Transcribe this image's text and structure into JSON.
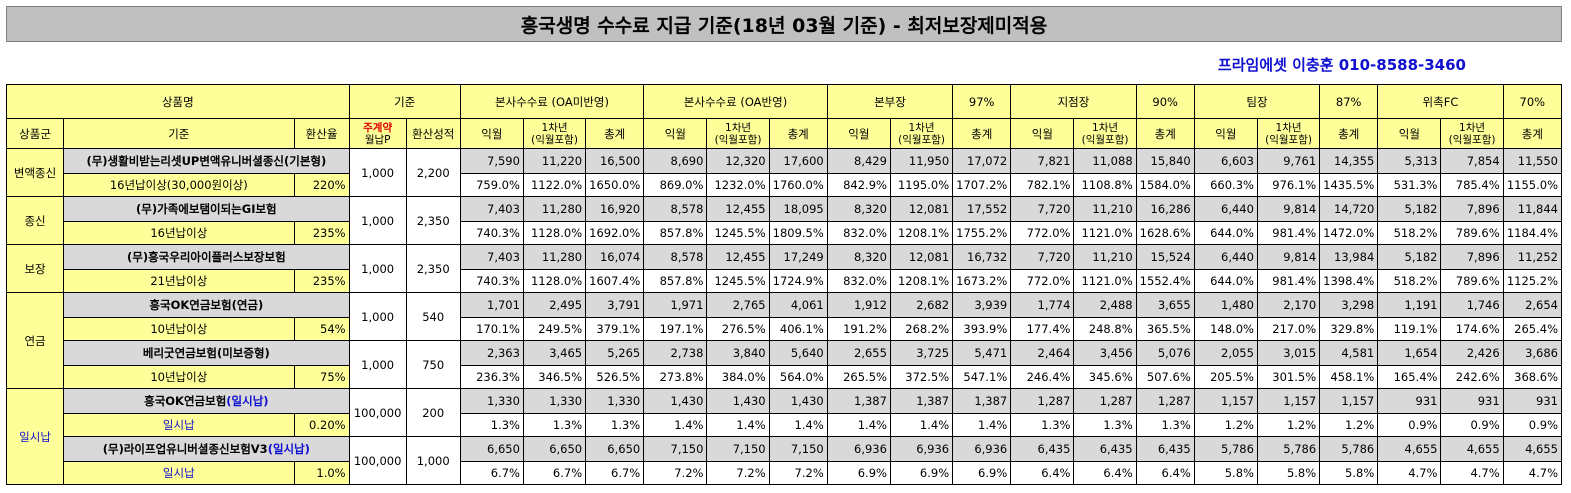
{
  "title": "흥국생명 수수료 지급 기준(18년 03월 기준) - 최저보장제미적용",
  "contact": "프라임에셋 이충훈 010-8588-3460",
  "header": {
    "product_name": "상품명",
    "basis": "기준",
    "hq_no_oa": "본사수수료 (OA미반영)",
    "hq_oa": "본사수수료 (OA반영)",
    "bonbujang": "본부장",
    "bonbujang_pct": "97%",
    "jijeomjang": "지점장",
    "jijeomjang_pct": "90%",
    "timjang": "팀장",
    "timjang_pct": "87%",
    "wichok": "위촉FC",
    "wichok_pct": "70%",
    "product_group": "상품군",
    "basis2": "기준",
    "conversion_rate": "환산율",
    "main_contract_line1": "주계약",
    "main_contract_line2": "월납P",
    "conversion_perf": "환산성적",
    "ikwol": "익월",
    "first_year_line1": "1차년",
    "first_year_line2": "(익월포함)",
    "total": "총계"
  },
  "groups": {
    "g1": "변액종신",
    "g2": "종신",
    "g3": "보장",
    "g4": "연금",
    "g5": "일시납"
  },
  "products": [
    {
      "name": "(무)생활비받는리셋UP변액유니버셜종신(기본형)",
      "name_suffix": "",
      "basis": "16년납이상(30,000원이상)",
      "rate": "220%",
      "premium": "1,000",
      "perf": "2,200",
      "amounts": [
        "7,590",
        "11,220",
        "16,500",
        "8,690",
        "12,320",
        "17,600",
        "8,429",
        "11,950",
        "17,072",
        "7,821",
        "11,088",
        "15,840",
        "6,603",
        "9,761",
        "14,355",
        "5,313",
        "7,854",
        "11,550"
      ],
      "percents": [
        "759.0%",
        "1122.0%",
        "1650.0%",
        "869.0%",
        "1232.0%",
        "1760.0%",
        "842.9%",
        "1195.0%",
        "1707.2%",
        "782.1%",
        "1108.8%",
        "1584.0%",
        "660.3%",
        "976.1%",
        "1435.5%",
        "531.3%",
        "785.4%",
        "1155.0%"
      ]
    },
    {
      "name": "(무)가족에보탬이되는GI보험",
      "name_suffix": "",
      "basis": "16년납이상",
      "rate": "235%",
      "premium": "1,000",
      "perf": "2,350",
      "amounts": [
        "7,403",
        "11,280",
        "16,920",
        "8,578",
        "12,455",
        "18,095",
        "8,320",
        "12,081",
        "17,552",
        "7,720",
        "11,210",
        "16,286",
        "6,440",
        "9,814",
        "14,720",
        "5,182",
        "7,896",
        "11,844"
      ],
      "percents": [
        "740.3%",
        "1128.0%",
        "1692.0%",
        "857.8%",
        "1245.5%",
        "1809.5%",
        "832.0%",
        "1208.1%",
        "1755.2%",
        "772.0%",
        "1121.0%",
        "1628.6%",
        "644.0%",
        "981.4%",
        "1472.0%",
        "518.2%",
        "789.6%",
        "1184.4%"
      ]
    },
    {
      "name": "(무)흥국우리아이플러스보장보험",
      "name_suffix": "",
      "basis": "21년납이상",
      "rate": "235%",
      "premium": "1,000",
      "perf": "2,350",
      "amounts": [
        "7,403",
        "11,280",
        "16,074",
        "8,578",
        "12,455",
        "17,249",
        "8,320",
        "12,081",
        "16,732",
        "7,720",
        "11,210",
        "15,524",
        "6,440",
        "9,814",
        "13,984",
        "5,182",
        "7,896",
        "11,252"
      ],
      "percents": [
        "740.3%",
        "1128.0%",
        "1607.4%",
        "857.8%",
        "1245.5%",
        "1724.9%",
        "832.0%",
        "1208.1%",
        "1673.2%",
        "772.0%",
        "1121.0%",
        "1552.4%",
        "644.0%",
        "981.4%",
        "1398.4%",
        "518.2%",
        "789.6%",
        "1125.2%"
      ]
    },
    {
      "name": "흥국OK연금보험(연금)",
      "name_suffix": "",
      "basis": "10년납이상",
      "rate": "54%",
      "premium": "1,000",
      "perf": "540",
      "amounts": [
        "1,701",
        "2,495",
        "3,791",
        "1,971",
        "2,765",
        "4,061",
        "1,912",
        "2,682",
        "3,939",
        "1,774",
        "2,488",
        "3,655",
        "1,480",
        "2,170",
        "3,298",
        "1,191",
        "1,746",
        "2,654"
      ],
      "percents": [
        "170.1%",
        "249.5%",
        "379.1%",
        "197.1%",
        "276.5%",
        "406.1%",
        "191.2%",
        "268.2%",
        "393.9%",
        "177.4%",
        "248.8%",
        "365.5%",
        "148.0%",
        "217.0%",
        "329.8%",
        "119.1%",
        "174.6%",
        "265.4%"
      ]
    },
    {
      "name": "베리굿연금보험(미보증형)",
      "name_suffix": "",
      "basis": "10년납이상",
      "rate": "75%",
      "premium": "1,000",
      "perf": "750",
      "amounts": [
        "2,363",
        "3,465",
        "5,265",
        "2,738",
        "3,840",
        "5,640",
        "2,655",
        "3,725",
        "5,471",
        "2,464",
        "3,456",
        "5,076",
        "2,055",
        "3,015",
        "4,581",
        "1,654",
        "2,426",
        "3,686"
      ],
      "percents": [
        "236.3%",
        "346.5%",
        "526.5%",
        "273.8%",
        "384.0%",
        "564.0%",
        "265.5%",
        "372.5%",
        "547.1%",
        "246.4%",
        "345.6%",
        "507.6%",
        "205.5%",
        "301.5%",
        "458.1%",
        "165.4%",
        "242.6%",
        "368.6%"
      ]
    },
    {
      "name": "흥국OK연금보험",
      "name_suffix": "(일시납)",
      "basis": "일시납",
      "rate": "0.20%",
      "premium": "100,000",
      "perf": "200",
      "amounts": [
        "1,330",
        "1,330",
        "1,330",
        "1,430",
        "1,430",
        "1,430",
        "1,387",
        "1,387",
        "1,387",
        "1,287",
        "1,287",
        "1,287",
        "1,157",
        "1,157",
        "1,157",
        "931",
        "931",
        "931"
      ],
      "percents": [
        "1.3%",
        "1.3%",
        "1.3%",
        "1.4%",
        "1.4%",
        "1.4%",
        "1.4%",
        "1.4%",
        "1.4%",
        "1.3%",
        "1.3%",
        "1.3%",
        "1.2%",
        "1.2%",
        "1.2%",
        "0.9%",
        "0.9%",
        "0.9%"
      ]
    },
    {
      "name": "(무)라이프업유니버셜종신보험V3",
      "name_suffix": "(일시납)",
      "basis": "일시납",
      "rate": "1.0%",
      "premium": "100,000",
      "perf": "1,000",
      "amounts": [
        "6,650",
        "6,650",
        "6,650",
        "7,150",
        "7,150",
        "7,150",
        "6,936",
        "6,936",
        "6,936",
        "6,435",
        "6,435",
        "6,435",
        "5,786",
        "5,786",
        "5,786",
        "4,655",
        "4,655",
        "4,655"
      ],
      "percents": [
        "6.7%",
        "6.7%",
        "6.7%",
        "7.2%",
        "7.2%",
        "7.2%",
        "6.9%",
        "6.9%",
        "6.9%",
        "6.4%",
        "6.4%",
        "6.4%",
        "5.8%",
        "5.8%",
        "5.8%",
        "4.7%",
        "4.7%",
        "4.7%"
      ]
    }
  ]
}
